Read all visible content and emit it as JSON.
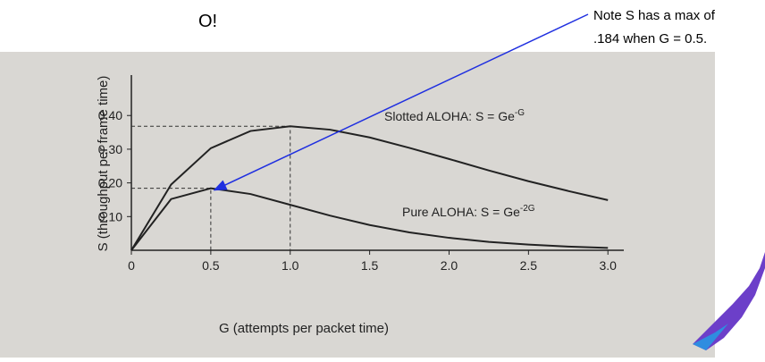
{
  "slide_title": "O!",
  "note": {
    "line1": "Note S has a max of",
    "line2": ".184 when G = 0.5."
  },
  "chart_data": {
    "type": "line",
    "x_label": "G (attempts per packet time)",
    "y_label": "S (throughput per frame time)",
    "x": [
      0,
      0.25,
      0.5,
      0.75,
      1.0,
      1.25,
      1.5,
      1.75,
      2.0,
      2.25,
      2.5,
      2.75,
      3.0
    ],
    "series": [
      {
        "name": "Slotted ALOHA: S = Ge",
        "superscript": "-G",
        "color": "#222222",
        "values": [
          0,
          0.195,
          0.303,
          0.354,
          0.368,
          0.358,
          0.335,
          0.304,
          0.271,
          0.237,
          0.205,
          0.176,
          0.149
        ]
      },
      {
        "name": "Pure ALOHA: S = Ge",
        "superscript": "-2G",
        "color": "#222222",
        "values": [
          0,
          0.152,
          0.184,
          0.167,
          0.135,
          0.103,
          0.075,
          0.053,
          0.037,
          0.025,
          0.017,
          0.011,
          0.007
        ]
      }
    ],
    "reference_points": [
      {
        "x": 1.0,
        "y": 0.368
      },
      {
        "x": 0.5,
        "y": 0.184
      }
    ],
    "xlim": [
      0,
      3.1
    ],
    "ylim": [
      0,
      0.52
    ],
    "xticks": [
      0,
      0.5,
      {
        "value": 1,
        "label": "1.0"
      },
      1.5,
      {
        "value": 2,
        "label": "2.0"
      },
      2.5,
      {
        "value": 3,
        "label": "3.0"
      }
    ],
    "yticks": [
      {
        "value": 0.1,
        "label": "0.10"
      },
      {
        "value": 0.2,
        "label": "0.20"
      },
      {
        "value": 0.3,
        "label": "0.30"
      },
      {
        "value": 0.4,
        "label": "0.40"
      }
    ]
  }
}
